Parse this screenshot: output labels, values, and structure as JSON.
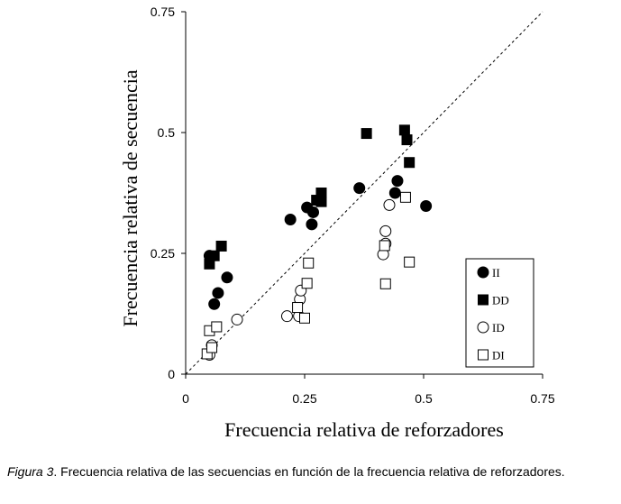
{
  "chart_data": {
    "type": "scatter",
    "xlabel": "Frecuencia relativa  de reforzadores",
    "ylabel": "Frecuencia relativa  de secuencia",
    "xlim": [
      0,
      0.75
    ],
    "ylim": [
      0,
      0.75
    ],
    "xticks": [
      0,
      0.25,
      0.5,
      0.75
    ],
    "yticks": [
      0,
      0.25,
      0.5,
      0.75
    ],
    "xtick_labels": [
      "0",
      "0.25",
      "0.5",
      "0.75"
    ],
    "ytick_labels": [
      "0",
      "0.25",
      "0.5",
      "0.75"
    ],
    "reference_line": {
      "type": "diagonal",
      "from": [
        0,
        0
      ],
      "to": [
        0.75,
        0.75
      ],
      "style": "dashed"
    },
    "grid": false,
    "legend_position": "bottom-right",
    "series": [
      {
        "name": "II",
        "marker": "filled-circle",
        "points": [
          [
            0.05,
            0.245
          ],
          [
            0.06,
            0.145
          ],
          [
            0.068,
            0.168
          ],
          [
            0.087,
            0.2
          ],
          [
            0.22,
            0.32
          ],
          [
            0.255,
            0.345
          ],
          [
            0.265,
            0.31
          ],
          [
            0.268,
            0.335
          ],
          [
            0.365,
            0.385
          ],
          [
            0.44,
            0.375
          ],
          [
            0.445,
            0.4
          ],
          [
            0.505,
            0.348
          ]
        ]
      },
      {
        "name": "DD",
        "marker": "filled-square",
        "points": [
          [
            0.05,
            0.228
          ],
          [
            0.06,
            0.245
          ],
          [
            0.075,
            0.265
          ],
          [
            0.275,
            0.36
          ],
          [
            0.285,
            0.375
          ],
          [
            0.285,
            0.357
          ],
          [
            0.38,
            0.498
          ],
          [
            0.46,
            0.505
          ],
          [
            0.465,
            0.485
          ],
          [
            0.47,
            0.438
          ]
        ]
      },
      {
        "name": "ID",
        "marker": "open-circle",
        "points": [
          [
            0.05,
            0.04
          ],
          [
            0.055,
            0.06
          ],
          [
            0.108,
            0.113
          ],
          [
            0.213,
            0.12
          ],
          [
            0.238,
            0.12
          ],
          [
            0.24,
            0.155
          ],
          [
            0.242,
            0.173
          ],
          [
            0.415,
            0.248
          ],
          [
            0.42,
            0.27
          ],
          [
            0.42,
            0.296
          ],
          [
            0.428,
            0.35
          ]
        ]
      },
      {
        "name": "DI",
        "marker": "open-square",
        "points": [
          [
            0.045,
            0.042
          ],
          [
            0.05,
            0.09
          ],
          [
            0.055,
            0.055
          ],
          [
            0.065,
            0.098
          ],
          [
            0.235,
            0.138
          ],
          [
            0.25,
            0.116
          ],
          [
            0.255,
            0.188
          ],
          [
            0.258,
            0.23
          ],
          [
            0.418,
            0.266
          ],
          [
            0.42,
            0.187
          ],
          [
            0.462,
            0.366
          ],
          [
            0.47,
            0.232
          ]
        ]
      }
    ]
  },
  "caption": {
    "figure_label": "Figura 3",
    "text": ". Frecuencia relativa de las secuencias en función de la frecuencia relativa de  reforzadores."
  }
}
